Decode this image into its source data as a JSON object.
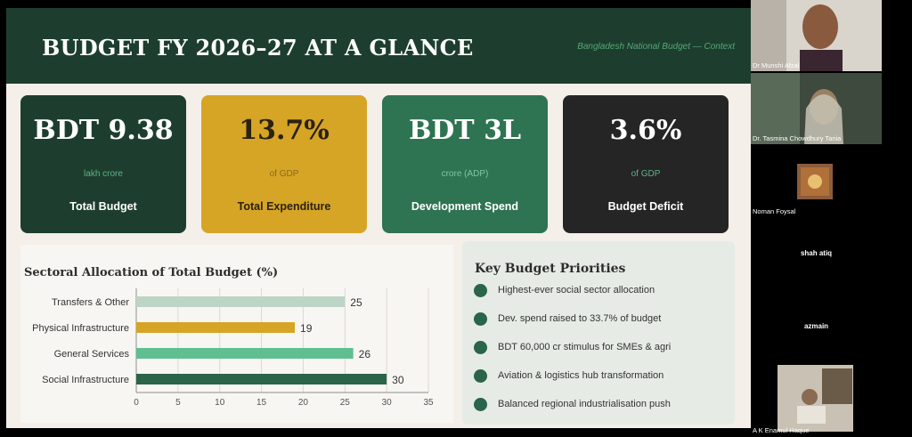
{
  "header": {
    "title": "BUDGET FY 2026–27 AT A GLANCE",
    "subtitle": "Bangladesh National Budget — Context"
  },
  "cards": [
    {
      "value": "BDT 9.38",
      "unit": "lakh crore",
      "label": "Total Budget"
    },
    {
      "value": "13.7%",
      "unit": "of GDP",
      "label": "Total Expenditure"
    },
    {
      "value": "BDT 3L",
      "unit": "crore (ADP)",
      "label": "Development Spend"
    },
    {
      "value": "3.6%",
      "unit": "of GDP",
      "label": "Budget Deficit"
    }
  ],
  "colors": {
    "header": "#1d3e2e",
    "card_dark_green": "#1d3e2e",
    "card_gold": "#d6a526",
    "card_green": "#2e7352",
    "card_dark": "#252525",
    "bullet": "#2a6449"
  },
  "chart_data": {
    "type": "bar",
    "orientation": "horizontal",
    "title": "Sectoral Allocation of Total Budget (%)",
    "categories": [
      "Transfers & Other",
      "Physical Infrastructure",
      "General Services",
      "Social Infrastructure"
    ],
    "values": [
      25,
      19,
      26,
      30
    ],
    "bar_colors": [
      "#bcd5c5",
      "#d6a526",
      "#5fbf90",
      "#2a6449"
    ],
    "xlim": [
      0,
      35
    ],
    "xticks": [
      0,
      5,
      10,
      15,
      20,
      25,
      30,
      35
    ],
    "grid": true,
    "data_labels": true
  },
  "priorities": {
    "title": "Key Budget Priorities",
    "items": [
      "Highest-ever social sector allocation",
      "Dev. spend raised to 33.7% of budget",
      "BDT 60,000 cr stimulus for SMEs & agri",
      "Aviation & logistics hub transformation",
      "Balanced regional industrialisation push"
    ]
  },
  "participants": [
    {
      "name": "Dr Munshi Afzal",
      "video": true
    },
    {
      "name": "Dr. Tasmina Chowdhury Tania",
      "video": true
    },
    {
      "name": "Noman Foysal",
      "video": true
    },
    {
      "name": "shah atiq",
      "video": false
    },
    {
      "name": "azmain",
      "video": false
    },
    {
      "name": "A K Enamul Haque",
      "video": true
    }
  ]
}
